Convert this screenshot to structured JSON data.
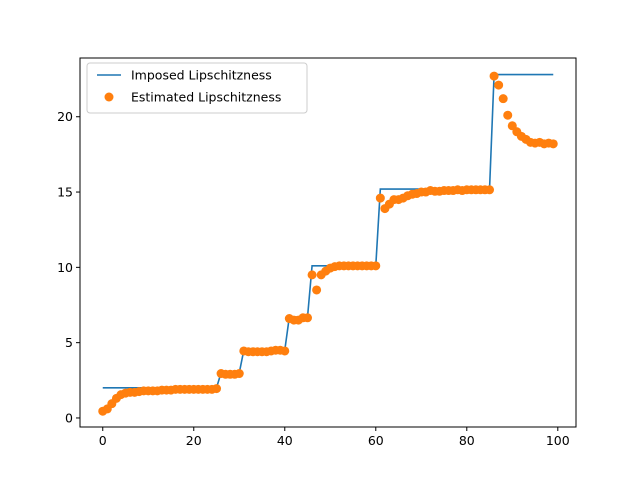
{
  "chart_data": {
    "type": "line",
    "title": "",
    "xlabel": "",
    "ylabel": "",
    "xlim": [
      -5.0,
      104.0
    ],
    "ylim": [
      -0.6,
      23.9
    ],
    "xticks": [
      0,
      20,
      40,
      60,
      80,
      100
    ],
    "yticks": [
      0,
      5,
      10,
      15,
      20
    ],
    "grid": false,
    "legend_position": "upper left",
    "series": [
      {
        "name": "Imposed Lipschitzness",
        "kind": "line",
        "color": "#1f77b4",
        "x": [
          0,
          25,
          26,
          30,
          31,
          40,
          41,
          45,
          46,
          60,
          61,
          85,
          86,
          99
        ],
        "y": [
          2.0,
          2.0,
          3.0,
          3.0,
          4.5,
          4.5,
          6.7,
          6.7,
          10.1,
          10.1,
          15.2,
          15.2,
          22.8,
          22.8
        ]
      },
      {
        "name": "Estimated Lipschitzness",
        "kind": "scatter",
        "color": "#ff7f0e",
        "x": [
          0,
          1,
          2,
          3,
          4,
          5,
          6,
          7,
          8,
          9,
          10,
          11,
          12,
          13,
          14,
          15,
          16,
          17,
          18,
          19,
          20,
          21,
          22,
          23,
          24,
          25,
          26,
          27,
          28,
          29,
          30,
          31,
          32,
          33,
          34,
          35,
          36,
          37,
          38,
          39,
          40,
          41,
          42,
          43,
          44,
          45,
          46,
          47,
          48,
          49,
          50,
          51,
          52,
          53,
          54,
          55,
          56,
          57,
          58,
          59,
          60,
          61,
          62,
          63,
          64,
          65,
          66,
          67,
          68,
          69,
          70,
          71,
          72,
          73,
          74,
          75,
          76,
          77,
          78,
          79,
          80,
          81,
          82,
          83,
          84,
          85,
          86,
          87,
          88,
          89,
          90,
          91,
          92,
          93,
          94,
          95,
          96,
          97,
          98,
          99
        ],
        "y": [
          0.45,
          0.6,
          0.95,
          1.3,
          1.55,
          1.65,
          1.7,
          1.7,
          1.75,
          1.8,
          1.8,
          1.8,
          1.8,
          1.85,
          1.85,
          1.85,
          1.9,
          1.9,
          1.9,
          1.9,
          1.9,
          1.9,
          1.9,
          1.9,
          1.9,
          1.95,
          2.95,
          2.9,
          2.9,
          2.9,
          2.95,
          4.45,
          4.4,
          4.4,
          4.4,
          4.4,
          4.4,
          4.45,
          4.5,
          4.5,
          4.45,
          6.6,
          6.5,
          6.5,
          6.65,
          6.65,
          9.5,
          8.5,
          9.5,
          9.75,
          9.95,
          10.05,
          10.1,
          10.1,
          10.1,
          10.1,
          10.1,
          10.1,
          10.1,
          10.1,
          10.1,
          14.6,
          13.9,
          14.2,
          14.5,
          14.5,
          14.6,
          14.75,
          14.85,
          14.9,
          15.0,
          15.0,
          15.1,
          15.05,
          15.05,
          15.1,
          15.1,
          15.1,
          15.15,
          15.1,
          15.15,
          15.15,
          15.15,
          15.15,
          15.15,
          15.15,
          22.7,
          22.1,
          21.2,
          20.1,
          19.4,
          19.0,
          18.7,
          18.5,
          18.3,
          18.25,
          18.3,
          18.2,
          18.25,
          18.2
        ]
      }
    ]
  }
}
